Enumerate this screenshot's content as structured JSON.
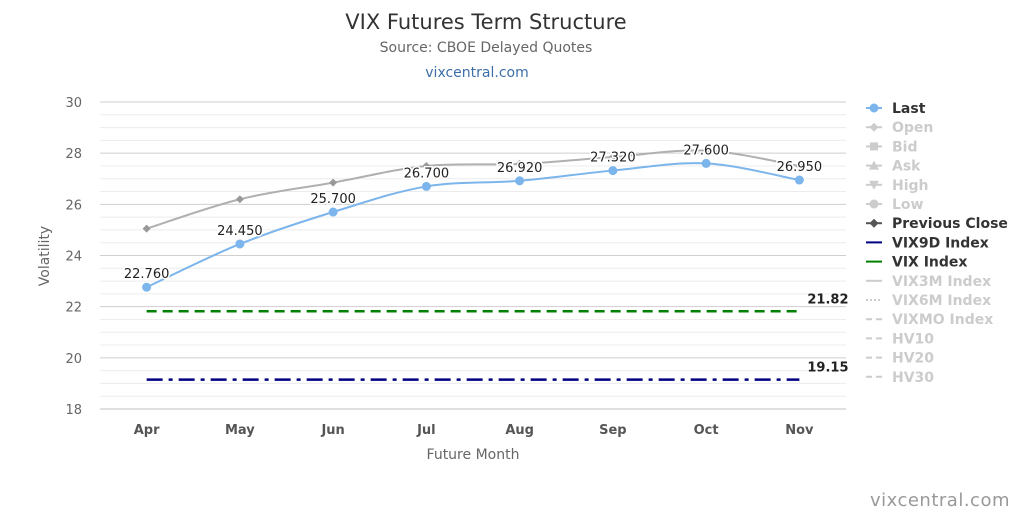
{
  "chart_data": {
    "type": "line",
    "title": "VIX Futures Term Structure",
    "subtitle": "Source: CBOE Delayed Quotes",
    "link": "vixcentral.com",
    "watermark": "vixcentral.com",
    "xlabel": "Future Month",
    "ylabel": "Volatility",
    "categories": [
      "Apr",
      "May",
      "Jun",
      "Jul",
      "Aug",
      "Sep",
      "Oct",
      "Nov"
    ],
    "ylim": [
      18,
      30
    ],
    "yticks": [
      18,
      20,
      22,
      24,
      26,
      28,
      30
    ],
    "grid": true,
    "legend_position": "right",
    "series": [
      {
        "name": "Last",
        "values": [
          22.76,
          24.45,
          25.7,
          26.7,
          26.92,
          27.32,
          27.6,
          26.95
        ],
        "labels": [
          "22.760",
          "24.450",
          "25.700",
          "26.700",
          "26.920",
          "27.320",
          "27.600",
          "26.950"
        ],
        "color": "#7cb5ec"
      },
      {
        "name": "Previous Close",
        "values": [
          25.05,
          26.2,
          26.85,
          27.5,
          27.58,
          27.85,
          28.1,
          27.5
        ],
        "color": "#b0b0b0"
      },
      {
        "name": "VIX9D Index",
        "value": 19.15,
        "label": "19.15",
        "color": "#000080",
        "dash": "dashdot"
      },
      {
        "name": "VIX Index",
        "value": 21.82,
        "label": "21.82",
        "color": "#008000",
        "dash": "dash"
      }
    ],
    "legend": [
      {
        "name": "Last",
        "symbol": "circle",
        "color": "#7cb5ec",
        "text_color": "#333333",
        "line": "solid"
      },
      {
        "name": "Open",
        "symbol": "diamond",
        "color": "#cccccc",
        "text_color": "#cccccc",
        "line": "solid"
      },
      {
        "name": "Bid",
        "symbol": "square",
        "color": "#cccccc",
        "text_color": "#cccccc",
        "line": "solid"
      },
      {
        "name": "Ask",
        "symbol": "triangle",
        "color": "#cccccc",
        "text_color": "#cccccc",
        "line": "solid"
      },
      {
        "name": "High",
        "symbol": "triangle-down",
        "color": "#cccccc",
        "text_color": "#cccccc",
        "line": "solid"
      },
      {
        "name": "Low",
        "symbol": "circle",
        "color": "#cccccc",
        "text_color": "#cccccc",
        "line": "solid"
      },
      {
        "name": "Previous Close",
        "symbol": "diamond",
        "color": "#555555",
        "text_color": "#333333",
        "line": "solid"
      },
      {
        "name": "VIX9D Index",
        "symbol": "none",
        "color": "#000080",
        "text_color": "#333333",
        "line": "solid"
      },
      {
        "name": "VIX Index",
        "symbol": "none",
        "color": "#008000",
        "text_color": "#333333",
        "line": "solid"
      },
      {
        "name": "VIX3M Index",
        "symbol": "none",
        "color": "#cccccc",
        "text_color": "#cccccc",
        "line": "solid"
      },
      {
        "name": "VIX6M Index",
        "symbol": "none",
        "color": "#cccccc",
        "text_color": "#cccccc",
        "line": "dotted"
      },
      {
        "name": "VIXMO Index",
        "symbol": "none",
        "color": "#cccccc",
        "text_color": "#cccccc",
        "line": "dashed"
      },
      {
        "name": "HV10",
        "symbol": "none",
        "color": "#cccccc",
        "text_color": "#cccccc",
        "line": "dashed"
      },
      {
        "name": "HV20",
        "symbol": "none",
        "color": "#cccccc",
        "text_color": "#cccccc",
        "line": "dashed"
      },
      {
        "name": "HV30",
        "symbol": "none",
        "color": "#cccccc",
        "text_color": "#cccccc",
        "line": "dashed"
      }
    ]
  }
}
